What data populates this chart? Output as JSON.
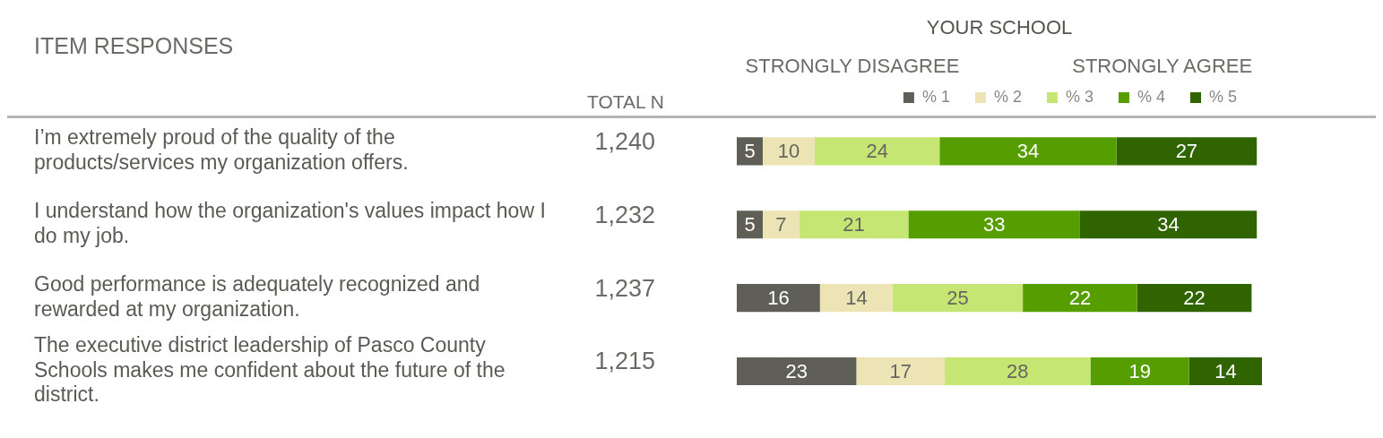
{
  "chart_data": {
    "type": "bar",
    "orientation": "horizontal",
    "stacked": true,
    "title": "ITEM RESPONSES",
    "subtitle": "YOUR SCHOOL",
    "categories": [
      "I’m extremely proud of the quality of the products/services my organization offers.",
      "I understand how the organization's values impact how I do my job.",
      "Good performance is adequately recognized and rewarded at my organization.",
      "The executive district leadership of Pasco County Schools makes me confident about the future of the district."
    ],
    "series": [
      {
        "name": "% 1",
        "color": "#5f5f58",
        "values": [
          5,
          5,
          16,
          23
        ]
      },
      {
        "name": "% 2",
        "color": "#ece4b4",
        "values": [
          10,
          7,
          14,
          17
        ]
      },
      {
        "name": "% 3",
        "color": "#c5e672",
        "values": [
          24,
          21,
          25,
          28
        ]
      },
      {
        "name": "% 4",
        "color": "#569e00",
        "values": [
          34,
          33,
          22,
          19
        ]
      },
      {
        "name": "% 5",
        "color": "#2f6400",
        "values": [
          27,
          34,
          22,
          14
        ]
      }
    ],
    "annotations": [
      "STRONGLY DISAGREE",
      "STRONGLY AGREE",
      "TOTAL N",
      "1,240",
      "1,232",
      "1,237",
      "1,215"
    ],
    "data_labels": true,
    "legend": "top",
    "grid": false,
    "tick_labels": "y"
  }
}
